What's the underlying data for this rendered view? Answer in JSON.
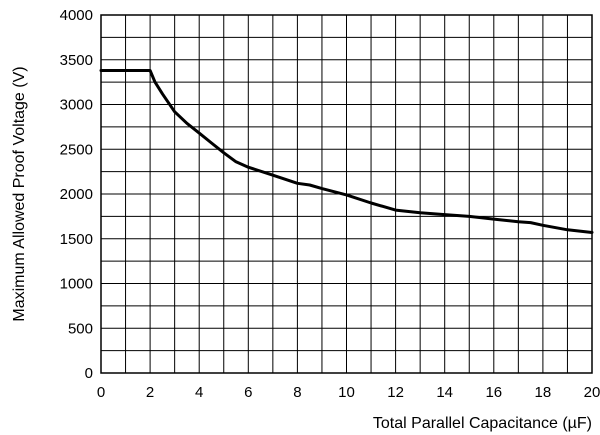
{
  "chart_data": {
    "type": "line",
    "title": "",
    "xlabel": "Total Parallel Capacitance (µF)",
    "ylabel": "Maximum Allowed Proof Voltage (V)",
    "xlim": [
      0,
      20
    ],
    "ylim": [
      0,
      4000
    ],
    "x_ticks": [
      0,
      2,
      4,
      6,
      8,
      10,
      12,
      14,
      16,
      18,
      20
    ],
    "y_ticks": [
      0,
      500,
      1000,
      1500,
      2000,
      2500,
      3000,
      3500,
      4000
    ],
    "x_minor_step": 1,
    "y_minor_step": 250,
    "grid": true,
    "legend": "none",
    "series": [
      {
        "x": [
          0,
          2.0,
          2.2,
          2.5,
          3.0,
          3.5,
          4.0,
          4.5,
          5.0,
          5.5,
          6.0,
          7.0,
          8.0,
          8.5,
          9.0,
          10.0,
          11.0,
          12.0,
          13.0,
          14.0,
          15.0,
          16.0,
          17.0,
          17.5,
          18.0,
          19.0,
          20.0
        ],
        "y": [
          3380,
          3380,
          3250,
          3120,
          2920,
          2790,
          2680,
          2570,
          2460,
          2360,
          2300,
          2210,
          2120,
          2100,
          2060,
          1990,
          1900,
          1820,
          1790,
          1770,
          1750,
          1720,
          1690,
          1680,
          1650,
          1600,
          1570
        ]
      }
    ]
  }
}
